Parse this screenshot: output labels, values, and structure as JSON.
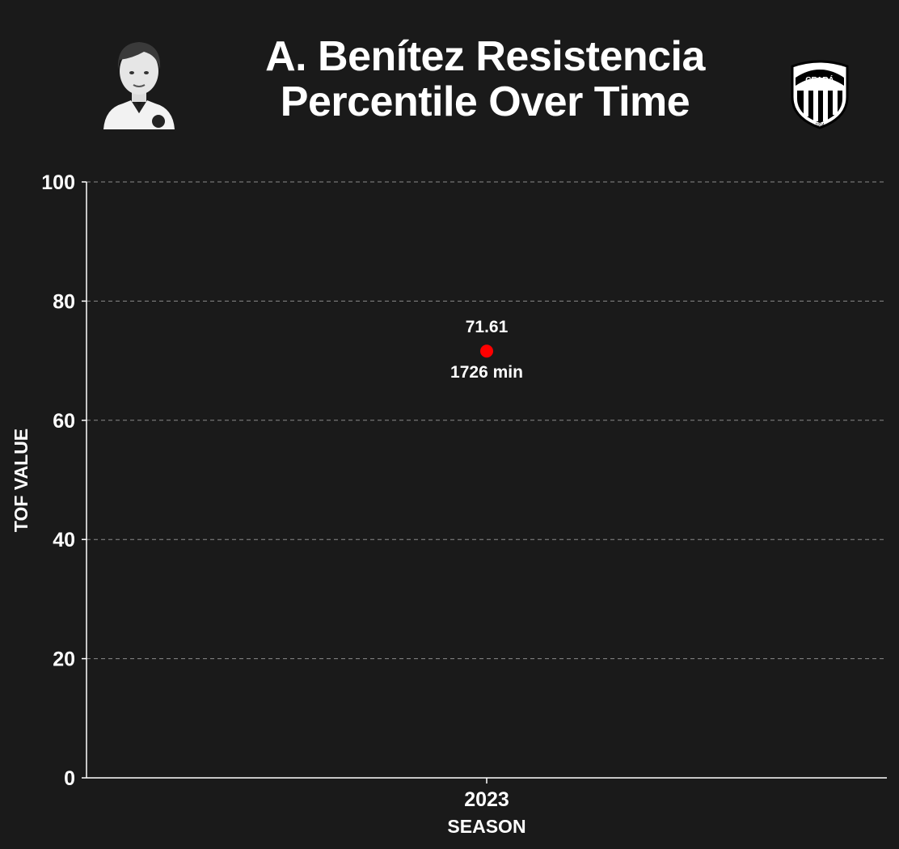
{
  "header": {
    "title_line1": "A. Benítez Resistencia",
    "title_line2": "Percentile Over Time",
    "avatar_icon": "player-avatar-icon",
    "crest_icon": "ceara-crest-icon",
    "crest_text": "CEARÁ",
    "crest_year": "1914"
  },
  "chart_data": {
    "type": "scatter",
    "x": [
      "2023"
    ],
    "y": [
      71.61
    ],
    "point_labels": [
      "71.61"
    ],
    "minutes_labels": [
      "1726 min"
    ],
    "xlabel": "SEASON",
    "ylabel": "TOF VALUE",
    "ylim": [
      0,
      100
    ],
    "yticks": [
      0,
      20,
      40,
      60,
      80,
      100
    ],
    "grid": true,
    "point_color": "#ff0000",
    "background": "#1a1a1a"
  }
}
